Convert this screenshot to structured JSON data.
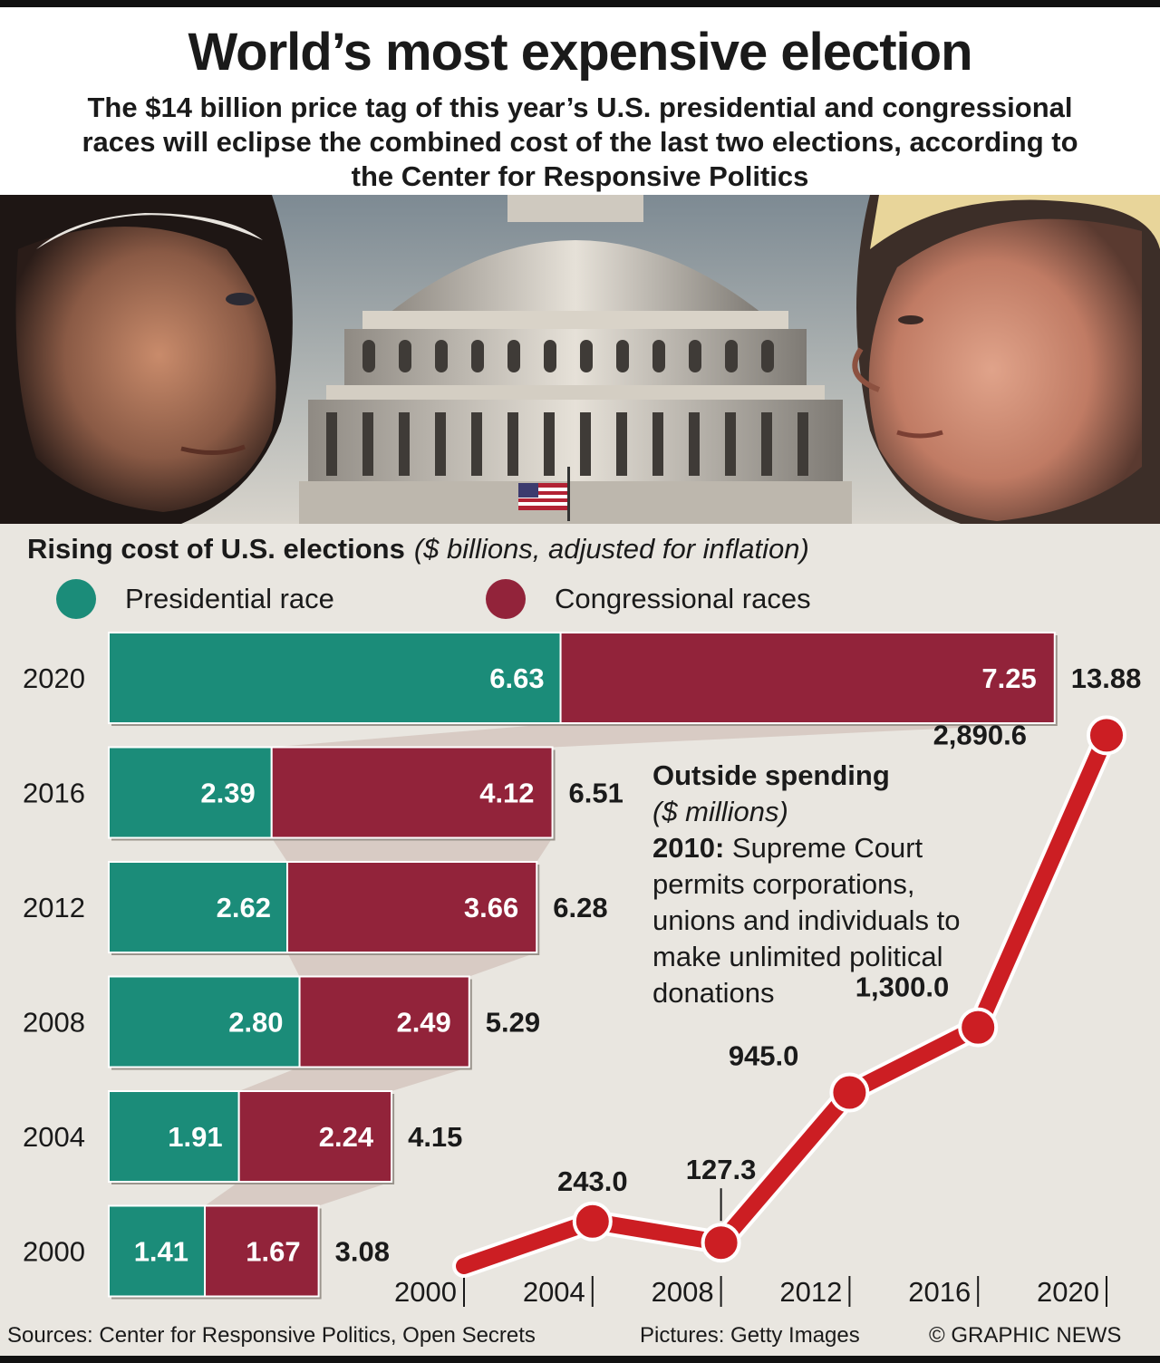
{
  "header": {
    "title": "World’s most expensive election",
    "subtitle": "The $14 billion price tag of this year’s U.S. presidential and congressional races will eclipse the combined cost of the last two elections, according to the Center for Responsive Politics"
  },
  "colors": {
    "presidential": "#1b8c79",
    "congressional": "#92233a",
    "line": "#cc1e23",
    "connector": "#d3c4bd"
  },
  "chart_data": [
    {
      "type": "bar",
      "stacked": true,
      "orientation": "horizontal",
      "title": "Rising cost of U.S. elections",
      "title_note": "($ billions, adjusted for inflation)",
      "legend": [
        "Presidential race",
        "Congressional races"
      ],
      "categories": [
        "2020",
        "2016",
        "2012",
        "2008",
        "2004",
        "2000"
      ],
      "series": [
        {
          "name": "Presidential race",
          "values": [
            6.63,
            2.39,
            2.62,
            2.8,
            1.91,
            1.41
          ],
          "labels": [
            "6.63",
            "2.39",
            "2.62",
            "2.80",
            "1.91",
            "1.41"
          ]
        },
        {
          "name": "Congressional races",
          "values": [
            7.25,
            4.12,
            3.66,
            2.49,
            2.24,
            1.67
          ],
          "labels": [
            "7.25",
            "4.12",
            "3.66",
            "2.49",
            "2.24",
            "1.67"
          ]
        }
      ],
      "totals": [
        "13.88",
        "6.51",
        "6.28",
        "5.29",
        "4.15",
        "3.08"
      ]
    },
    {
      "type": "line",
      "title": "Outside spending",
      "unit": "($ millions)",
      "annotation_year": "2010:",
      "annotation_text": "Supreme Court permits corporations, unions and individuals to make unlimited political donations",
      "x_ticks": [
        "2000",
        "2004",
        "2008",
        "2012",
        "2016",
        "2020"
      ],
      "x_range": [
        2000,
        2020
      ],
      "points": [
        {
          "x": 2000,
          "y": 0,
          "label": ""
        },
        {
          "x": 2004,
          "y": 243.0,
          "label": "243.0"
        },
        {
          "x": 2008,
          "y": 127.3,
          "label": "127.3"
        },
        {
          "x": 2012,
          "y": 945.0,
          "label": "945.0"
        },
        {
          "x": 2016,
          "y": 1300.0,
          "label": "1,300.0"
        },
        {
          "x": 2020,
          "y": 2890.6,
          "label": "2,890.6"
        }
      ]
    }
  ],
  "footer": {
    "sources": "Sources: Center for Responsive Politics, Open Secrets",
    "pictures": "Pictures: Getty Images",
    "credit": "© GRAPHIC NEWS"
  }
}
